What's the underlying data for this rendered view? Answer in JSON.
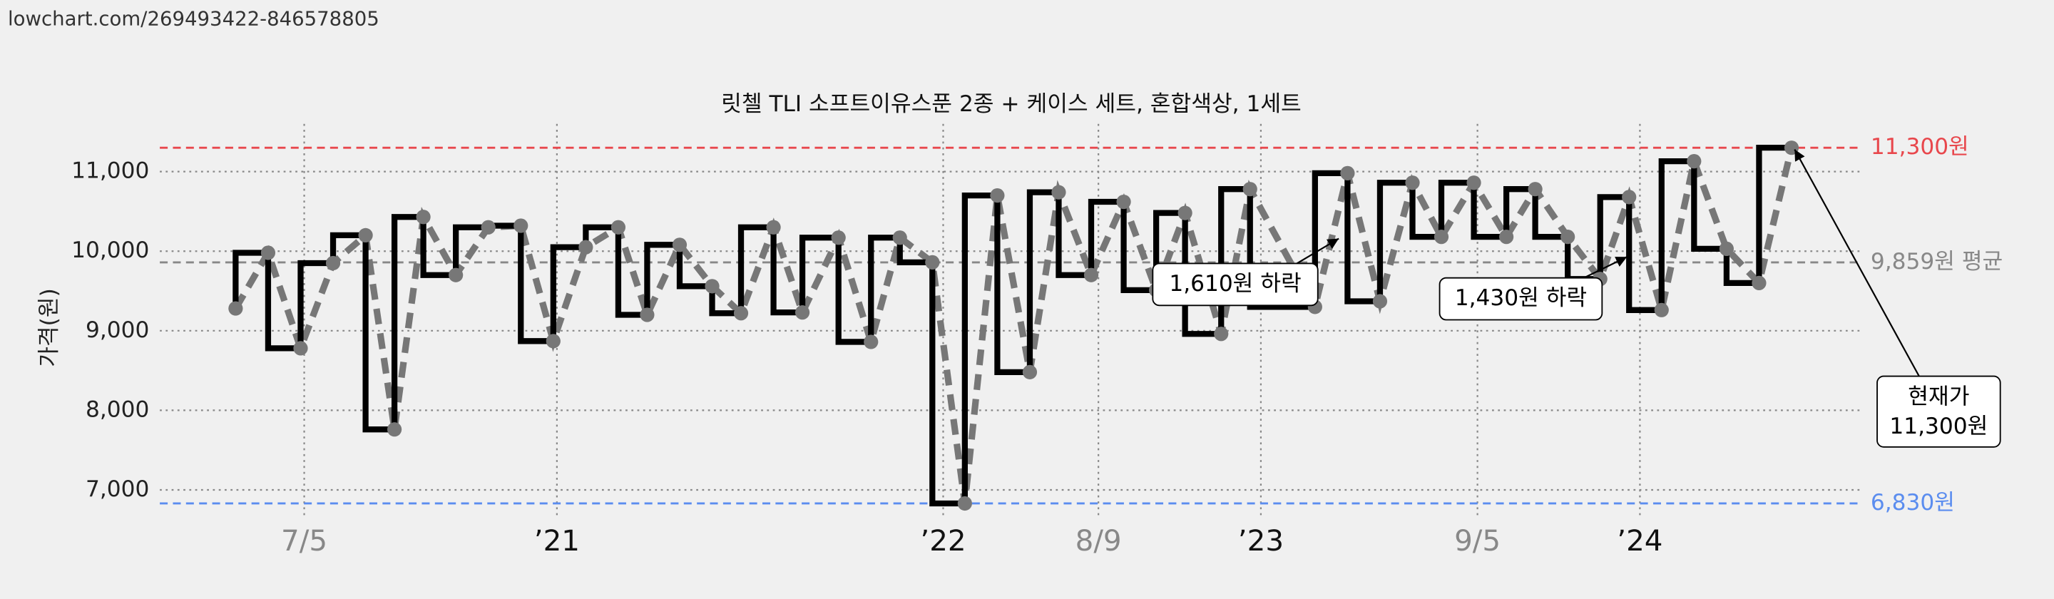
{
  "source": "lowchart.com/269493422-846578805",
  "chart_data": {
    "type": "step",
    "title": "릿첼 TLI 소프트이유스푼 2종 + 케이스 세트, 혼합색상, 1세트",
    "y_label": "가격(원)",
    "x": [
      2020.11,
      2020.2,
      2020.29,
      2020.38,
      2020.47,
      2020.55,
      2020.63,
      2020.72,
      2020.81,
      2020.9,
      2020.99,
      2021.08,
      2021.17,
      2021.25,
      2021.34,
      2021.43,
      2021.51,
      2021.6,
      2021.68,
      2021.78,
      2021.87,
      2021.95,
      2022.04,
      2022.13,
      2022.22,
      2022.31,
      2022.39,
      2022.48,
      2022.57,
      2022.66,
      2022.74,
      2022.84,
      2022.92,
      2023.1,
      2023.19,
      2023.28,
      2023.37,
      2023.45,
      2023.54,
      2023.63,
      2023.71,
      2023.8,
      2023.89,
      2023.97,
      2024.06,
      2024.15,
      2024.24,
      2024.33,
      2024.42
    ],
    "values": [
      9280,
      9980,
      8780,
      9850,
      10200,
      7760,
      10430,
      9700,
      10300,
      10320,
      8870,
      10050,
      10300,
      9200,
      10080,
      9560,
      9220,
      10300,
      9230,
      10170,
      8860,
      10170,
      9860,
      6830,
      10700,
      8480,
      10740,
      9700,
      10620,
      9510,
      10480,
      8960,
      10780,
      9300,
      10980,
      9370,
      10860,
      10180,
      10860,
      10180,
      10780,
      10180,
      9650,
      10680,
      9260,
      11130,
      10030,
      9600,
      11300
    ],
    "step_color": "#000000",
    "line_color": "#777777",
    "xlim": [
      2019.9,
      2024.61
    ],
    "ylim": [
      6650,
      11600
    ],
    "xticks": [
      {
        "value": 2020.3,
        "label": "7/5",
        "color": "#888888"
      },
      {
        "value": 2021,
        "label": "’21",
        "color": "#111111"
      },
      {
        "value": 2022.07,
        "label": "’22",
        "color": "#111111"
      },
      {
        "value": 2022.5,
        "label": "8/9",
        "color": "#888888"
      },
      {
        "value": 2022.95,
        "label": "’23",
        "color": "#111111"
      },
      {
        "value": 2023.55,
        "label": "9/5",
        "color": "#888888"
      },
      {
        "value": 2024.0,
        "label": "’24",
        "color": "#111111"
      }
    ],
    "yticks": [
      {
        "value": 7000,
        "label": "7,000"
      },
      {
        "value": 8000,
        "label": "8,000"
      },
      {
        "value": 9000,
        "label": "9,000"
      },
      {
        "value": 10000,
        "label": "10,000"
      },
      {
        "value": 11000,
        "label": "11,000"
      }
    ],
    "grid": true,
    "reference_lines": [
      {
        "value": 11300,
        "label": "11,300원",
        "color": "#e8474c"
      },
      {
        "value": 9859,
        "label": "9,859원 평균",
        "color": "#888888"
      },
      {
        "value": 6830,
        "label": "6,830원",
        "color": "#5b8def"
      }
    ],
    "annotations": [
      {
        "text": "1,610원 하락"
      },
      {
        "text": "1,430원 하락"
      },
      {
        "text": "현재가",
        "text2": "11,300원"
      }
    ]
  }
}
